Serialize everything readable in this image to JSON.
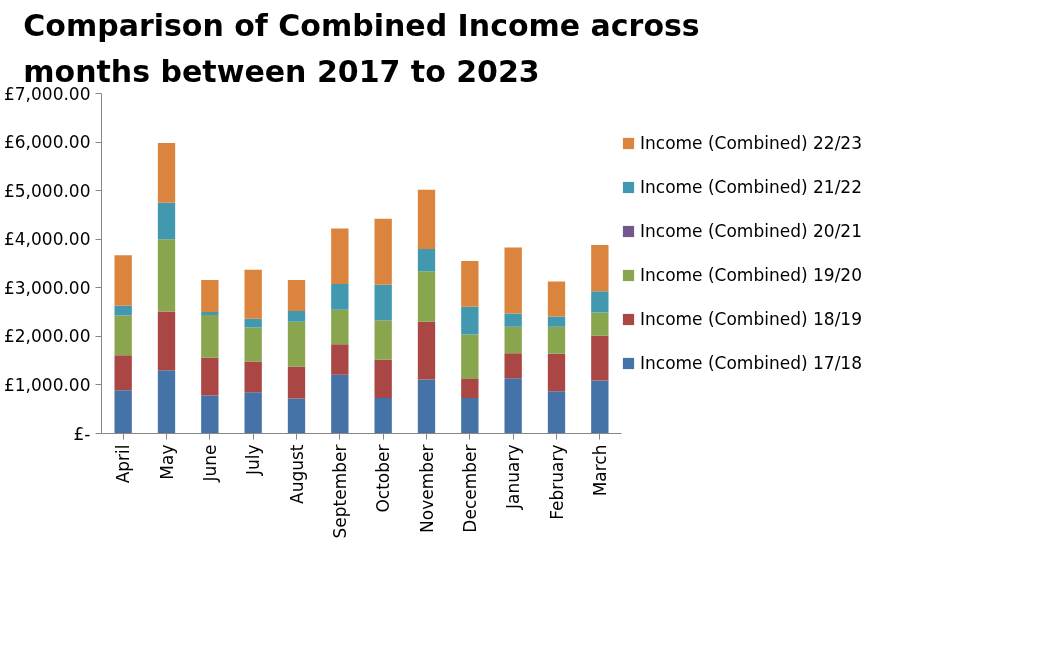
{
  "chart_data": {
    "type": "bar",
    "stacked": true,
    "title": "Comparison of Combined Income across months between 2017 to 2023",
    "categories": [
      "April",
      "May",
      "June",
      "July",
      "August",
      "September",
      "October",
      "November",
      "December",
      "January",
      "February",
      "March"
    ],
    "series": [
      {
        "name": "Income (Combined) 17/18",
        "color": "#4573a7",
        "values": [
          890,
          1300,
          780,
          850,
          720,
          1210,
          730,
          1110,
          730,
          1140,
          870,
          1090
        ]
      },
      {
        "name": "Income (Combined) 18/19",
        "color": "#aa4643",
        "values": [
          720,
          1210,
          780,
          630,
          660,
          630,
          790,
          1190,
          390,
          510,
          770,
          920
        ]
      },
      {
        "name": "Income (Combined) 19/20",
        "color": "#89a54e",
        "values": [
          820,
          1490,
          880,
          700,
          920,
          710,
          810,
          1040,
          920,
          550,
          560,
          480
        ]
      },
      {
        "name": "Income (Combined) 20/21",
        "color": "#71588f",
        "values": [
          0,
          0,
          0,
          0,
          0,
          0,
          0,
          0,
          0,
          0,
          0,
          0
        ]
      },
      {
        "name": "Income (Combined) 21/22",
        "color": "#4198af",
        "values": [
          200,
          750,
          60,
          180,
          220,
          530,
          730,
          460,
          570,
          270,
          210,
          440
        ]
      },
      {
        "name": "Income (Combined) 22/23",
        "color": "#db843d",
        "values": [
          1040,
          1230,
          660,
          1010,
          640,
          1140,
          1360,
          1220,
          940,
          1360,
          720,
          950
        ]
      }
    ],
    "ylim": [
      0,
      7000
    ],
    "yticks": [
      {
        "value": 0,
        "label": "£-"
      },
      {
        "value": 1000,
        "label": "£1,000.00"
      },
      {
        "value": 2000,
        "label": "£2,000.00"
      },
      {
        "value": 3000,
        "label": "£3,000.00"
      },
      {
        "value": 4000,
        "label": "£4,000.00"
      },
      {
        "value": 5000,
        "label": "£5,000.00"
      },
      {
        "value": 6000,
        "label": "£6,000.00"
      },
      {
        "value": 7000,
        "label": "£7,000.00"
      }
    ],
    "grid": false,
    "legend": "right"
  }
}
